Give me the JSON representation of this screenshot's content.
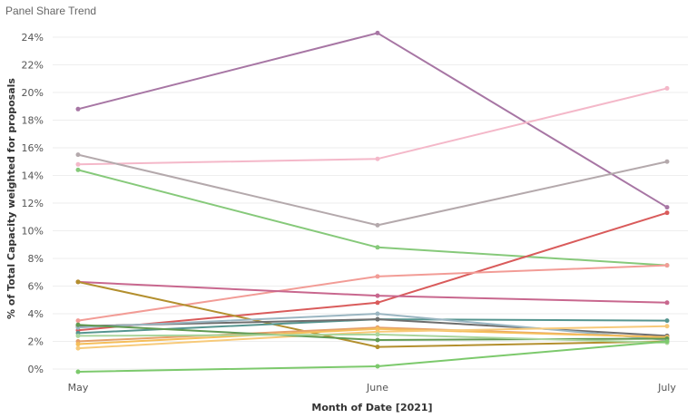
{
  "chart_data": {
    "type": "line",
    "title": "Panel Share Trend",
    "xlabel": "Month of Date [2021]",
    "ylabel": "% of Total Capacity weighted for proposals",
    "categories": [
      "May",
      "June",
      "July"
    ],
    "y_ticks": [
      {
        "value": 0,
        "label": "0%"
      },
      {
        "value": 2,
        "label": "2%"
      },
      {
        "value": 4,
        "label": "4%"
      },
      {
        "value": 6,
        "label": "6%"
      },
      {
        "value": 8,
        "label": "8%"
      },
      {
        "value": 10,
        "label": "10%"
      },
      {
        "value": 12,
        "label": "12%"
      },
      {
        "value": 14,
        "label": "14%"
      },
      {
        "value": 16,
        "label": "16%"
      },
      {
        "value": 18,
        "label": "18%"
      },
      {
        "value": 20,
        "label": "20%"
      },
      {
        "value": 22,
        "label": "22%"
      },
      {
        "value": 24,
        "label": "24%"
      }
    ],
    "ylim": [
      -0.5,
      24.8
    ],
    "grid": true,
    "series": [
      {
        "color": "#a776a4",
        "values": [
          18.8,
          24.3,
          11.7
        ]
      },
      {
        "color": "#f4b8c9",
        "values": [
          14.8,
          15.2,
          20.3
        ]
      },
      {
        "color": "#b4a9ac",
        "values": [
          15.5,
          10.4,
          15.0
        ]
      },
      {
        "color": "#86c97a",
        "values": [
          14.4,
          8.8,
          7.5
        ]
      },
      {
        "color": "#d95b5b",
        "values": [
          2.8,
          4.8,
          11.3
        ]
      },
      {
        "color": "#f29c96",
        "values": [
          3.5,
          6.7,
          7.5
        ]
      },
      {
        "color": "#c8678e",
        "values": [
          6.3,
          5.3,
          4.8
        ]
      },
      {
        "color": "#b38f2e",
        "values": [
          6.3,
          1.6,
          2.0
        ]
      },
      {
        "color": "#55958f",
        "values": [
          2.6,
          3.6,
          3.5
        ]
      },
      {
        "color": "#6e6e6e",
        "values": [
          3.1,
          3.6,
          2.4
        ]
      },
      {
        "color": "#9bb6c2",
        "values": [
          3.0,
          4.0,
          2.1
        ]
      },
      {
        "color": "#e5a06a",
        "values": [
          2.0,
          3.0,
          2.3
        ]
      },
      {
        "color": "#f5be5a",
        "values": [
          1.8,
          2.9,
          2.3
        ]
      },
      {
        "color": "#f7ca7a",
        "values": [
          1.5,
          2.7,
          3.1
        ]
      },
      {
        "color": "#609a52",
        "values": [
          3.2,
          2.1,
          2.2
        ]
      },
      {
        "color": "#aad59d",
        "values": [
          2.4,
          2.5,
          1.9
        ]
      },
      {
        "color": "#7cc96c",
        "values": [
          -0.2,
          0.2,
          2.0
        ]
      }
    ]
  }
}
